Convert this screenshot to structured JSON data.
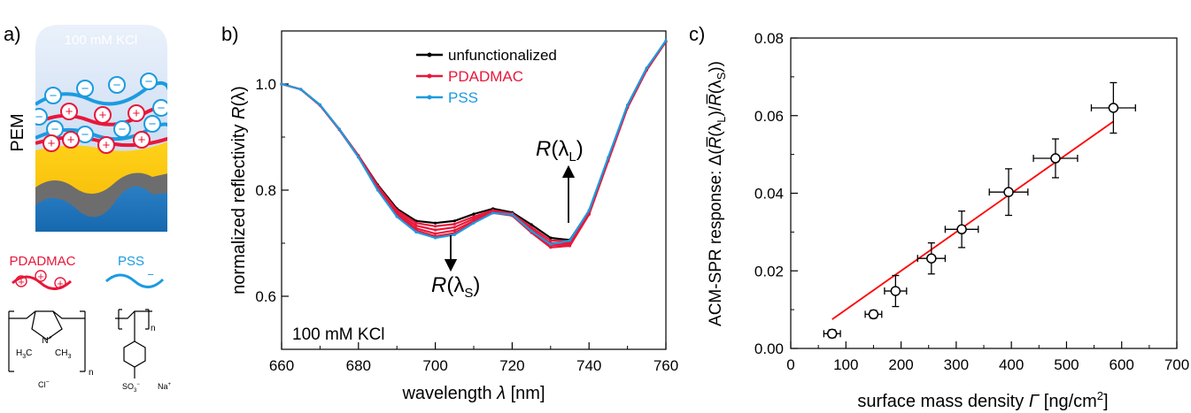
{
  "panel_a": {
    "label": "a)",
    "solution": "100 mM KCl",
    "pem_label": "PEM",
    "plus": "+",
    "minus": "−",
    "poly1": {
      "name": "PDADMAC",
      "color": "#e8173a",
      "h3c": "H",
      "h3c_sub": "3",
      "h3c_end": "C",
      "ch3": "CH",
      "ch3_sub": "3",
      "n_atom": "N",
      "n_charge": "+",
      "counter": "Cl",
      "counter_sup": "−",
      "repeat": "n"
    },
    "poly2": {
      "name": "PSS",
      "color": "#1b9be0",
      "so3": "SO",
      "so3_sub": "3",
      "so3_sup": "−",
      "counter": "Na",
      "counter_sup": "+",
      "repeat": "n"
    }
  },
  "chart_data": [
    {
      "panel": "b)",
      "type": "line",
      "xlabel_pre": "wavelength ",
      "xlabel_sym": "λ",
      "xlabel_post": " [nm]",
      "ylabel_pre": "normalized reflectivity ",
      "ylabel_sym": "R",
      "ylabel_paren": "(λ)",
      "xlim": [
        660,
        760
      ],
      "ylim": [
        0.5,
        1.1
      ],
      "xticks": [
        "660",
        "680",
        "700",
        "720",
        "740",
        "760"
      ],
      "yticks": [
        "0.6",
        "0.8",
        "1.0"
      ],
      "annotation": "100 mM KCl",
      "arrow_short": {
        "R": "R",
        "open": "(λ",
        "sub": "S",
        "close": ")"
      },
      "arrow_long": {
        "R": "R",
        "open": "(λ",
        "sub": "L",
        "close": ")"
      },
      "legend": [
        {
          "name": "unfunctionalized",
          "color": "#000000"
        },
        {
          "name": "PDADMAC",
          "color": "#e8173a"
        },
        {
          "name": "PSS",
          "color": "#1b9be0"
        }
      ],
      "x": [
        660,
        665,
        670,
        675,
        680,
        685,
        690,
        695,
        700,
        705,
        710,
        715,
        720,
        725,
        730,
        735,
        740,
        745,
        750,
        755,
        760
      ],
      "series": [
        {
          "name": "unfunctionalized",
          "color": "#000000",
          "values": [
            1.0,
            0.99,
            0.96,
            0.915,
            0.865,
            0.81,
            0.765,
            0.742,
            0.738,
            0.742,
            0.755,
            0.765,
            0.758,
            0.735,
            0.71,
            0.706,
            0.76,
            0.86,
            0.96,
            1.03,
            1.08
          ]
        },
        {
          "name": "",
          "color": "#e8173a",
          "values": [
            1.0,
            0.99,
            0.96,
            0.915,
            0.865,
            0.808,
            0.762,
            0.738,
            0.732,
            0.736,
            0.75,
            0.762,
            0.756,
            0.73,
            0.705,
            0.704,
            0.758,
            0.858,
            0.958,
            1.028,
            1.08
          ]
        },
        {
          "name": "PDADMAC",
          "color": "#e8173a",
          "values": [
            1.0,
            0.99,
            0.96,
            0.915,
            0.864,
            0.806,
            0.758,
            0.733,
            0.725,
            0.73,
            0.746,
            0.76,
            0.755,
            0.726,
            0.7,
            0.701,
            0.756,
            0.857,
            0.957,
            1.027,
            1.08
          ]
        },
        {
          "name": "",
          "color": "#e8173a",
          "values": [
            1.0,
            0.99,
            0.96,
            0.914,
            0.863,
            0.804,
            0.755,
            0.728,
            0.718,
            0.724,
            0.742,
            0.758,
            0.753,
            0.723,
            0.696,
            0.698,
            0.755,
            0.856,
            0.956,
            1.027,
            1.08
          ]
        },
        {
          "name": "",
          "color": "#e8173a",
          "values": [
            1.0,
            0.99,
            0.96,
            0.914,
            0.862,
            0.802,
            0.752,
            0.724,
            0.713,
            0.719,
            0.739,
            0.757,
            0.752,
            0.72,
            0.692,
            0.695,
            0.754,
            0.855,
            0.955,
            1.026,
            1.08
          ]
        },
        {
          "name": "PSS",
          "color": "#1b9be0",
          "values": [
            1.0,
            0.99,
            0.961,
            0.915,
            0.862,
            0.8,
            0.75,
            0.721,
            0.71,
            0.716,
            0.738,
            0.757,
            0.754,
            0.723,
            0.698,
            0.705,
            0.762,
            0.862,
            0.96,
            1.03,
            1.082
          ]
        }
      ]
    },
    {
      "panel": "c)",
      "type": "scatter",
      "xlabel_pre": "surface mass density ",
      "xlabel_sym": "Γ",
      "xlabel_post": " [ng/cm",
      "xlabel_sup": "2",
      "xlabel_end": "]",
      "ylabel": "ACM-SPR response: Δ(R̅(λL)/R̅(λS))",
      "ylabel_parts": [
        "ACM-SPR response: Δ(",
        "R̅",
        "(λ",
        "L",
        ")/",
        "R̅",
        "(λ",
        "S",
        "))"
      ],
      "xlim": [
        0,
        700
      ],
      "ylim": [
        0,
        0.08
      ],
      "xticks": [
        "0",
        "100",
        "200",
        "300",
        "400",
        "500",
        "600",
        "700"
      ],
      "yticks": [
        "0.00",
        "0.02",
        "0.04",
        "0.06",
        "0.08"
      ],
      "points": [
        {
          "x": 75,
          "y": 0.0038,
          "xerr": 15,
          "yerr": 0.001
        },
        {
          "x": 150,
          "y": 0.0088,
          "xerr": 15,
          "yerr": 0.001
        },
        {
          "x": 190,
          "y": 0.0148,
          "xerr": 20,
          "yerr": 0.004
        },
        {
          "x": 255,
          "y": 0.0232,
          "xerr": 25,
          "yerr": 0.004
        },
        {
          "x": 310,
          "y": 0.0307,
          "xerr": 30,
          "yerr": 0.0047
        },
        {
          "x": 395,
          "y": 0.0403,
          "xerr": 35,
          "yerr": 0.006
        },
        {
          "x": 480,
          "y": 0.049,
          "xerr": 40,
          "yerr": 0.005
        },
        {
          "x": 585,
          "y": 0.062,
          "xerr": 40,
          "yerr": 0.0065
        }
      ],
      "fit": {
        "x": [
          75,
          585
        ],
        "y": [
          0.0075,
          0.0585
        ],
        "color": "#ff0000"
      }
    }
  ]
}
